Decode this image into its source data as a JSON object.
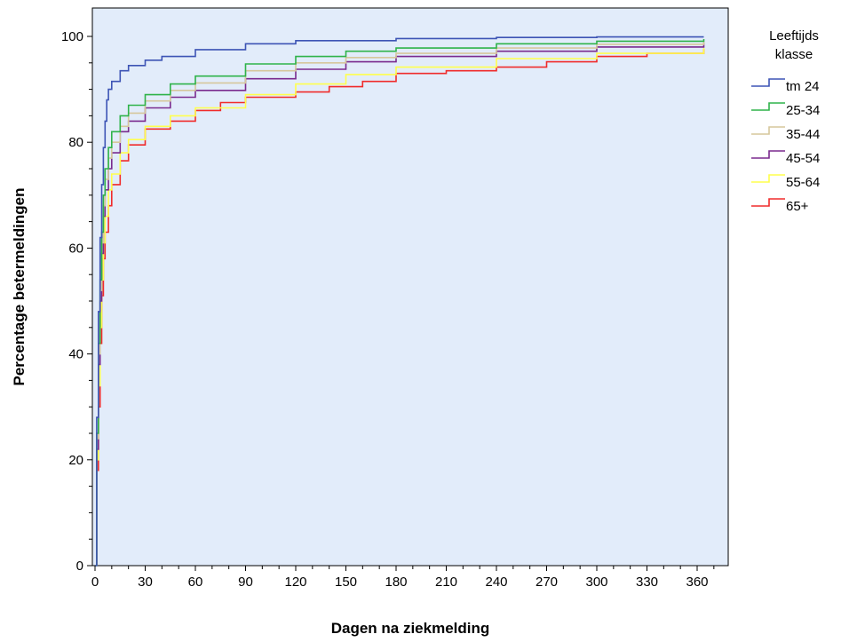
{
  "chart_data": {
    "type": "line",
    "step": true,
    "xlabel": "Dagen na ziekmelding",
    "ylabel": "Percentage betermeldingen",
    "xlim": [
      0,
      372
    ],
    "ylim": [
      0,
      104
    ],
    "xticks": [
      0,
      30,
      60,
      90,
      120,
      150,
      180,
      210,
      240,
      270,
      300,
      330,
      360
    ],
    "yticks": [
      0,
      20,
      40,
      60,
      80,
      100
    ],
    "plot_background": "#e2ecfa",
    "grid": false,
    "legend_title_lines": [
      "Leeftijds",
      "klasse"
    ],
    "legend_position": "right",
    "series": [
      {
        "name": "tm 24",
        "color": "#3d54b5",
        "points": [
          [
            0,
            0
          ],
          [
            1,
            28
          ],
          [
            2,
            48
          ],
          [
            3,
            62
          ],
          [
            4,
            72
          ],
          [
            5,
            79
          ],
          [
            6,
            84
          ],
          [
            7,
            88
          ],
          [
            8,
            90
          ],
          [
            10,
            91.5
          ],
          [
            15,
            93.5
          ],
          [
            20,
            94.5
          ],
          [
            30,
            95.5
          ],
          [
            40,
            96.2
          ],
          [
            60,
            97.5
          ],
          [
            90,
            98.6
          ],
          [
            120,
            99.2
          ],
          [
            180,
            99.6
          ],
          [
            240,
            99.8
          ],
          [
            300,
            99.9
          ],
          [
            364,
            99.9
          ]
        ]
      },
      {
        "name": "25-34",
        "color": "#2fb34a",
        "points": [
          [
            0,
            0
          ],
          [
            1,
            25
          ],
          [
            2,
            42
          ],
          [
            3,
            54
          ],
          [
            4,
            63
          ],
          [
            5,
            70
          ],
          [
            6,
            75
          ],
          [
            8,
            79
          ],
          [
            10,
            82
          ],
          [
            15,
            85
          ],
          [
            20,
            87
          ],
          [
            30,
            89
          ],
          [
            45,
            91
          ],
          [
            60,
            92.5
          ],
          [
            90,
            94.8
          ],
          [
            120,
            96.2
          ],
          [
            150,
            97.2
          ],
          [
            180,
            97.8
          ],
          [
            240,
            98.6
          ],
          [
            300,
            99.1
          ],
          [
            364,
            99.5
          ]
        ]
      },
      {
        "name": "35-44",
        "color": "#d6c79c",
        "points": [
          [
            0,
            0
          ],
          [
            1,
            24
          ],
          [
            2,
            40
          ],
          [
            3,
            52
          ],
          [
            4,
            61
          ],
          [
            5,
            68
          ],
          [
            6,
            73
          ],
          [
            8,
            77
          ],
          [
            10,
            80
          ],
          [
            15,
            83
          ],
          [
            20,
            85.5
          ],
          [
            30,
            87.8
          ],
          [
            45,
            89.8
          ],
          [
            60,
            91.2
          ],
          [
            90,
            93.5
          ],
          [
            120,
            95
          ],
          [
            150,
            96
          ],
          [
            180,
            96.8
          ],
          [
            240,
            97.8
          ],
          [
            300,
            98.5
          ],
          [
            364,
            99.1
          ]
        ]
      },
      {
        "name": "45-54",
        "color": "#7a2a8e",
        "points": [
          [
            0,
            0
          ],
          [
            1,
            22
          ],
          [
            2,
            38
          ],
          [
            3,
            50
          ],
          [
            4,
            59
          ],
          [
            5,
            66
          ],
          [
            6,
            71
          ],
          [
            8,
            75
          ],
          [
            10,
            78
          ],
          [
            15,
            82
          ],
          [
            20,
            84
          ],
          [
            30,
            86.5
          ],
          [
            45,
            88.5
          ],
          [
            60,
            89.8
          ],
          [
            90,
            92
          ],
          [
            120,
            93.8
          ],
          [
            150,
            95.2
          ],
          [
            180,
            96.2
          ],
          [
            240,
            97.2
          ],
          [
            300,
            98
          ],
          [
            364,
            98.8
          ]
        ]
      },
      {
        "name": "55-64",
        "color": "#ffff4d",
        "points": [
          [
            0,
            0
          ],
          [
            1,
            20
          ],
          [
            2,
            34
          ],
          [
            3,
            45
          ],
          [
            4,
            54
          ],
          [
            5,
            61
          ],
          [
            6,
            66
          ],
          [
            8,
            71
          ],
          [
            10,
            74
          ],
          [
            15,
            78
          ],
          [
            20,
            80.5
          ],
          [
            30,
            83
          ],
          [
            45,
            85
          ],
          [
            60,
            86.5
          ],
          [
            90,
            89
          ],
          [
            120,
            91
          ],
          [
            150,
            92.8
          ],
          [
            180,
            94.2
          ],
          [
            240,
            95.8
          ],
          [
            300,
            96.8
          ],
          [
            364,
            97.8
          ]
        ]
      },
      {
        "name": "65+",
        "color": "#f02b2b",
        "points": [
          [
            0,
            0
          ],
          [
            1,
            18
          ],
          [
            2,
            30
          ],
          [
            3,
            42
          ],
          [
            4,
            51
          ],
          [
            5,
            58
          ],
          [
            6,
            63
          ],
          [
            8,
            68
          ],
          [
            10,
            72
          ],
          [
            15,
            76.5
          ],
          [
            20,
            79.5
          ],
          [
            30,
            82.5
          ],
          [
            45,
            84
          ],
          [
            60,
            86
          ],
          [
            75,
            87.5
          ],
          [
            90,
            88.5
          ],
          [
            120,
            89.5
          ],
          [
            140,
            90.5
          ],
          [
            160,
            91.5
          ],
          [
            180,
            93
          ],
          [
            210,
            93.5
          ],
          [
            240,
            94.2
          ],
          [
            270,
            95.2
          ],
          [
            300,
            96.2
          ],
          [
            330,
            96.8
          ],
          [
            364,
            97.6
          ]
        ]
      }
    ]
  }
}
